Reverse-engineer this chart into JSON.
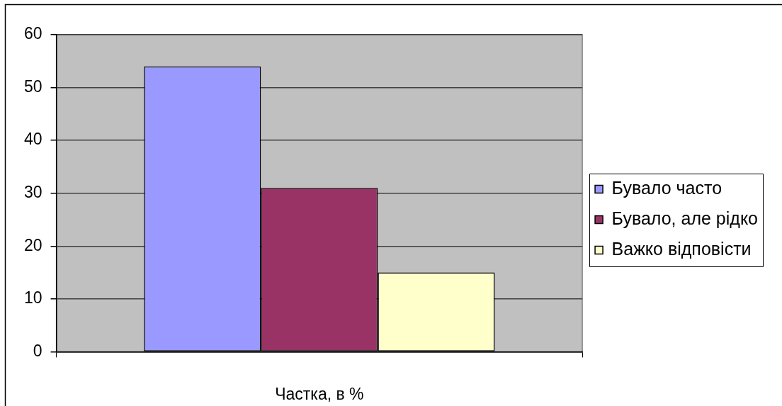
{
  "chart_data": {
    "type": "bar",
    "categories": [
      null
    ],
    "xlabel": "Частка, в %",
    "series": [
      {
        "name": "Бувало часто",
        "color": "#9999ff",
        "values": [
          54
        ]
      },
      {
        "name": "Бувало, але рідко",
        "color": "#993366",
        "values": [
          31
        ]
      },
      {
        "name": "Важко відповісти",
        "color": "#ffffcc",
        "values": [
          15
        ]
      }
    ],
    "ylim": [
      0,
      60
    ],
    "yticks": [
      0,
      10,
      20,
      30,
      40,
      50,
      60
    ],
    "grid": "y",
    "legend": "right"
  }
}
